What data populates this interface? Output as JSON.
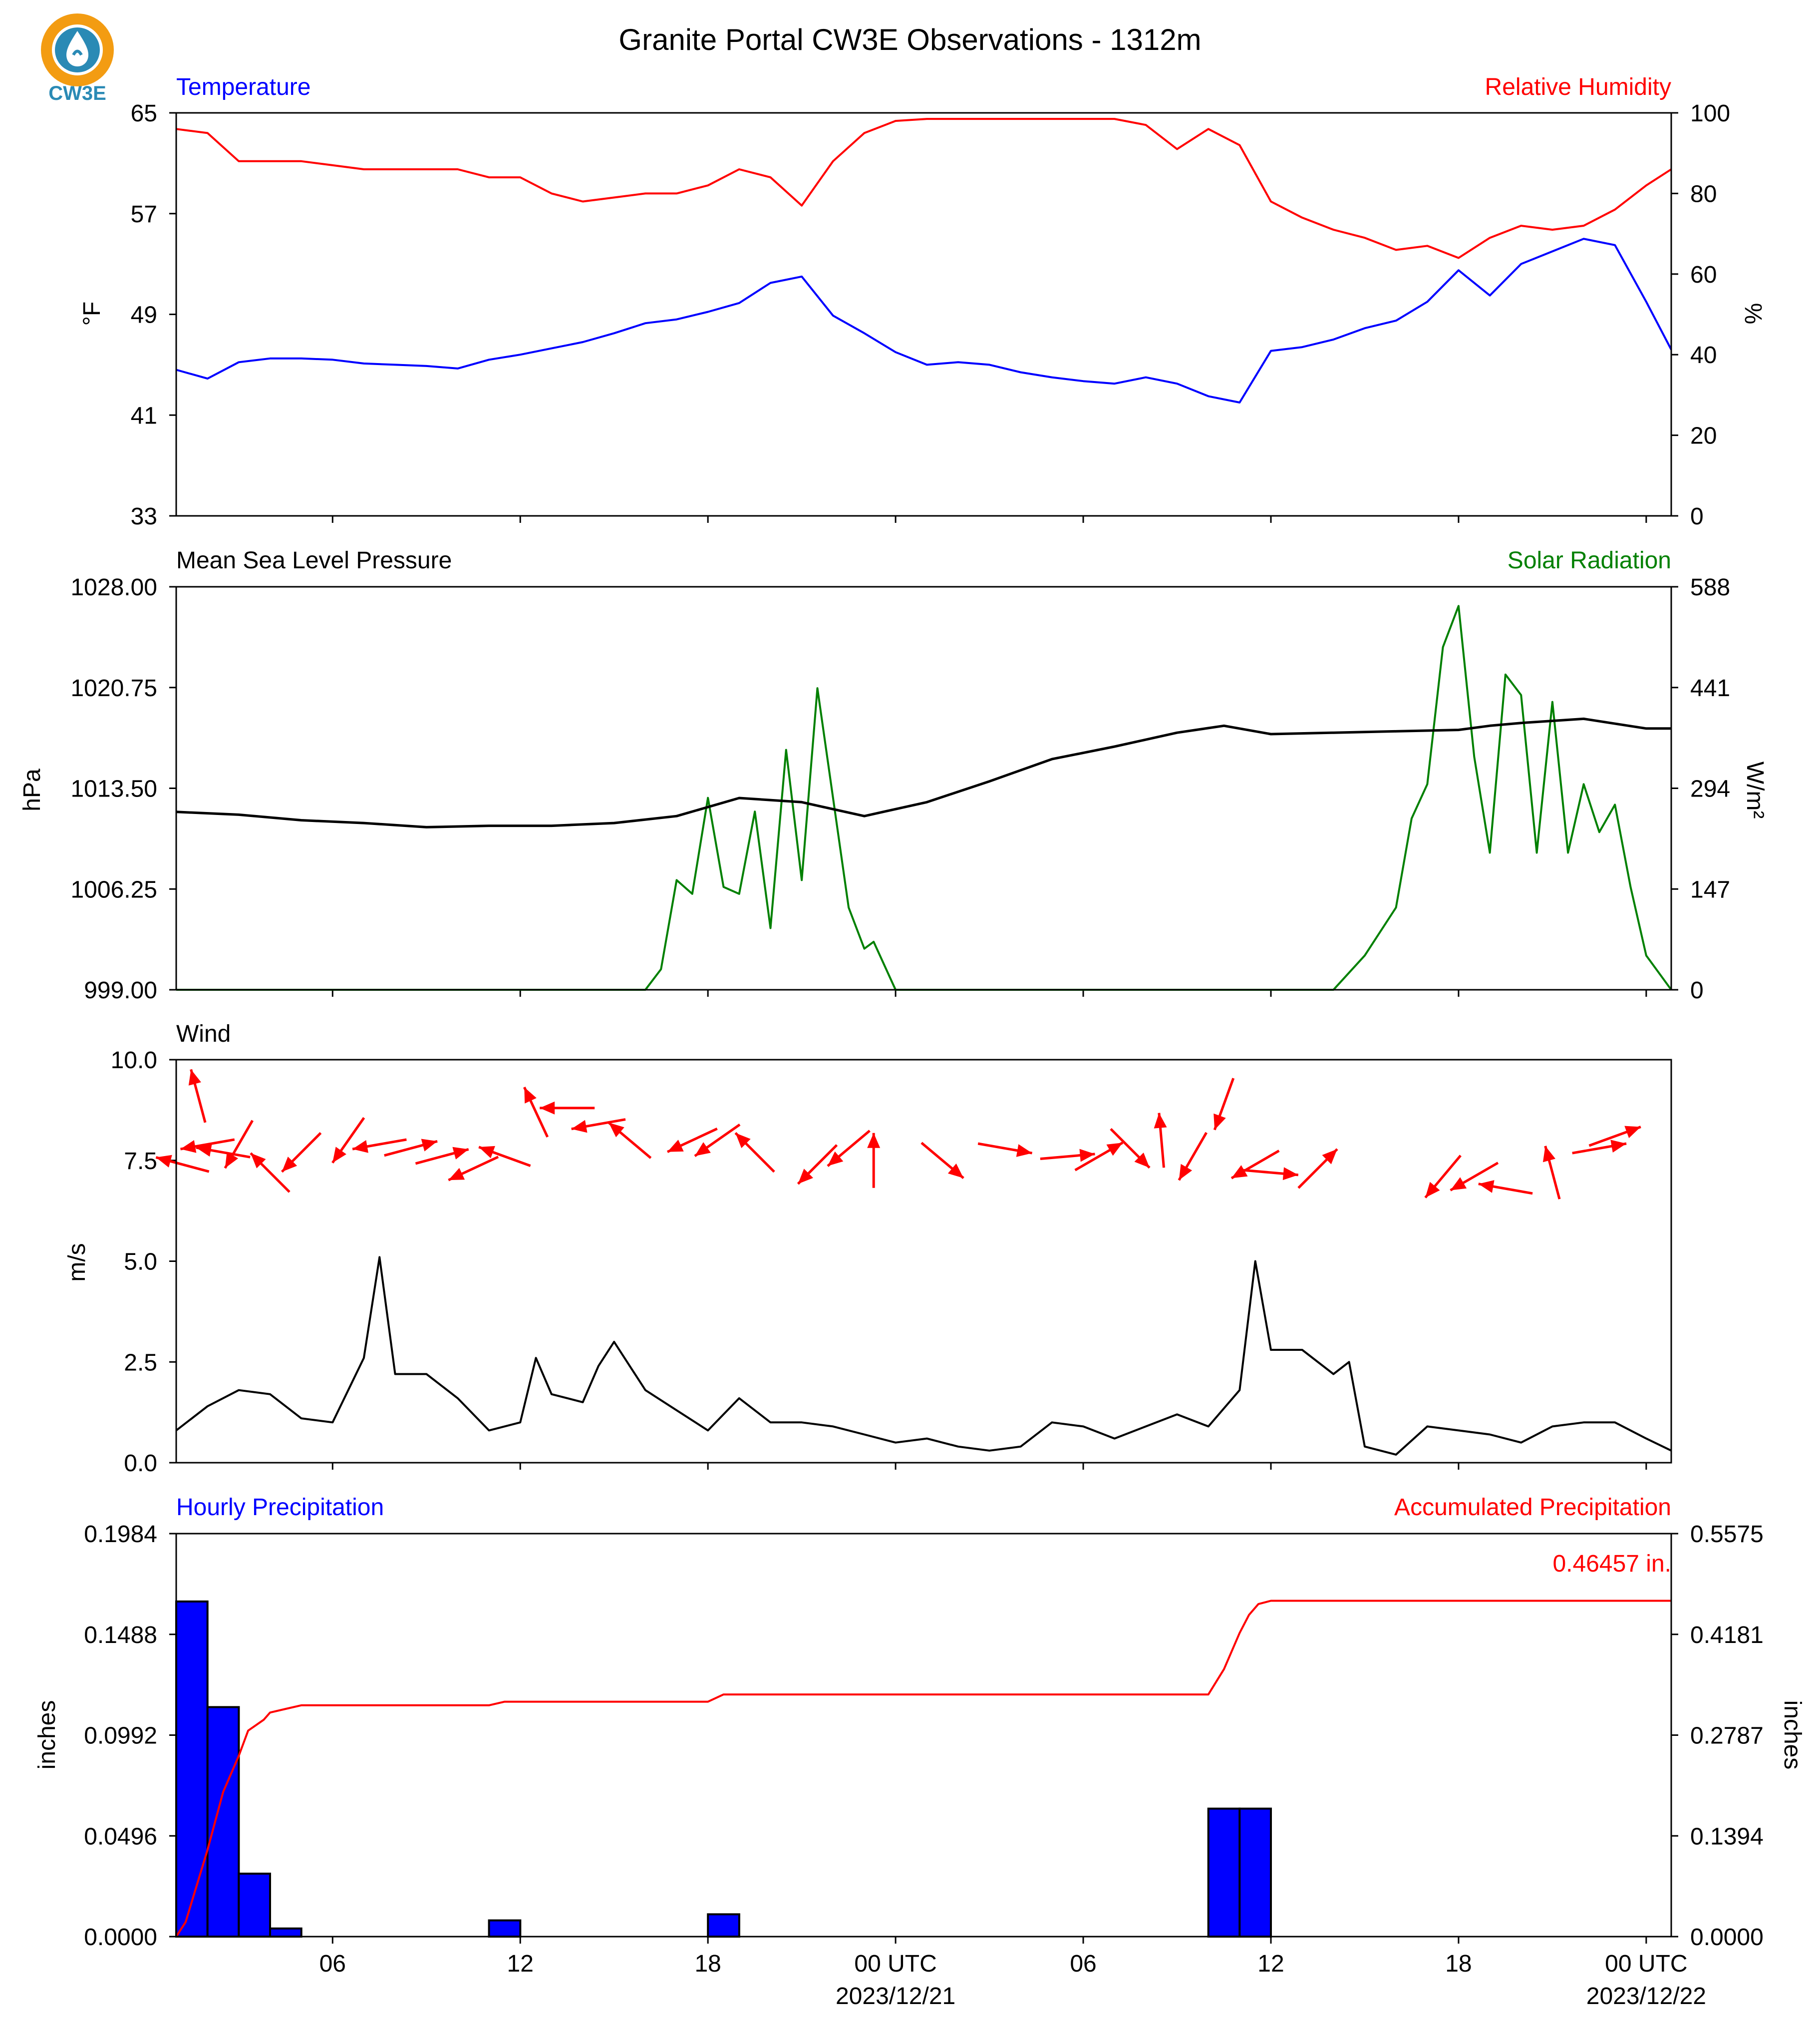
{
  "title": "Granite Portal CW3E Observations - 1312m",
  "logo": {
    "text": "CW3E",
    "icon": "cw3e-logo-icon",
    "colors": {
      "ring": "#f39c12",
      "drop": "#2a8ab5"
    }
  },
  "colors": {
    "blue": "#0000ff",
    "red": "#ff0000",
    "green": "#008000",
    "black": "#000000"
  },
  "x_axis": {
    "ticks": [
      "06",
      "12",
      "18",
      "00 UTC",
      "06",
      "12",
      "18",
      "00 UTC"
    ],
    "dates": [
      "2023/12/21",
      "2023/12/22"
    ]
  },
  "panels": {
    "temperature": {
      "left_label": "Temperature",
      "right_label": "Relative Humidity",
      "left_unit": "°F",
      "right_unit": "%",
      "left_ticks": [
        "65",
        "57",
        "49",
        "41",
        "33"
      ],
      "right_ticks": [
        "100",
        "80",
        "60",
        "40",
        "20",
        "0"
      ]
    },
    "pressure": {
      "left_label": "Mean Sea Level Pressure",
      "right_label": "Solar Radiation",
      "left_unit": "hPa",
      "right_unit": "W/m²",
      "left_ticks": [
        "1028.00",
        "1020.75",
        "1013.50",
        "1006.25",
        "999.00"
      ],
      "right_ticks": [
        "588",
        "441",
        "294",
        "147",
        "0"
      ]
    },
    "wind": {
      "left_label": "Wind",
      "left_unit": "m/s",
      "left_ticks": [
        "10.0",
        "7.5",
        "5.0",
        "2.5",
        "0.0"
      ]
    },
    "precip": {
      "left_label": "Hourly Precipitation",
      "right_label": "Accumulated Precipitation",
      "left_unit": "inches",
      "right_unit": "inches",
      "left_ticks": [
        "0.1984",
        "0.1488",
        "0.0992",
        "0.0496",
        "0.0000"
      ],
      "right_ticks": [
        "0.5575",
        "0.4181",
        "0.2787",
        "0.1394",
        "0.0000"
      ],
      "total_label": "0.46457 in."
    }
  },
  "chart_data": [
    {
      "type": "line",
      "title": "Temperature / Relative Humidity",
      "x_unit": "hours since 2023-12-20 01 UTC",
      "xlim": [
        0,
        47.8
      ],
      "series": [
        {
          "name": "Temperature",
          "axis": "left",
          "unit": "°F",
          "ylim": [
            33,
            65
          ],
          "x": [
            0,
            1,
            2,
            3,
            4,
            5,
            6,
            7,
            8,
            9,
            10,
            11,
            12,
            13,
            14,
            15,
            16,
            17,
            18,
            19,
            20,
            21,
            22,
            23,
            24,
            25,
            26,
            27,
            28,
            29,
            30,
            31,
            32,
            33,
            34,
            35,
            36,
            37,
            38,
            39,
            40,
            41,
            42,
            43,
            44,
            45,
            46,
            47,
            47.8
          ],
          "y": [
            44.6,
            43.9,
            45.2,
            45.5,
            45.5,
            45.4,
            45.1,
            45.0,
            44.9,
            44.7,
            45.4,
            45.8,
            46.3,
            46.8,
            47.5,
            48.3,
            48.6,
            49.2,
            49.9,
            51.5,
            52.0,
            48.9,
            47.5,
            46.0,
            45.0,
            45.2,
            45.0,
            44.4,
            44.0,
            43.7,
            43.5,
            44.0,
            43.5,
            42.5,
            42.0,
            46.1,
            46.4,
            47.0,
            47.9,
            48.5,
            50.0,
            52.5,
            50.5,
            53.0,
            54.0,
            55.0,
            54.5,
            50.0,
            46.2
          ]
        },
        {
          "name": "Relative Humidity",
          "axis": "right",
          "unit": "%",
          "ylim": [
            0,
            100
          ],
          "x": [
            0,
            1,
            2,
            3,
            4,
            5,
            6,
            7,
            8,
            9,
            10,
            11,
            12,
            13,
            14,
            15,
            16,
            17,
            18,
            19,
            20,
            21,
            22,
            23,
            24,
            25,
            26,
            27,
            28,
            29,
            30,
            31,
            32,
            33,
            34,
            35,
            36,
            37,
            38,
            39,
            40,
            41,
            42,
            43,
            44,
            45,
            46,
            47,
            47.8
          ],
          "y": [
            96,
            95,
            88,
            88,
            88,
            87,
            86,
            86,
            86,
            86,
            84,
            84,
            80,
            78,
            79,
            80,
            80,
            82,
            86,
            84,
            77,
            88,
            95,
            98,
            98.5,
            98.5,
            98.5,
            98.5,
            98.5,
            98.5,
            98.5,
            97,
            91,
            96,
            92,
            78,
            74,
            71,
            69,
            66,
            67,
            64,
            69,
            72,
            71,
            72,
            76,
            82,
            86
          ]
        }
      ]
    },
    {
      "type": "line",
      "title": "Mean Sea Level Pressure / Solar Radiation",
      "x_unit": "hours since 2023-12-20 01 UTC",
      "xlim": [
        0,
        47.8
      ],
      "series": [
        {
          "name": "Mean Sea Level Pressure",
          "axis": "left",
          "unit": "hPa",
          "ylim": [
            999,
            1028
          ],
          "x": [
            0,
            2,
            4,
            6,
            8,
            10,
            12,
            14,
            16,
            18,
            20,
            22,
            24,
            26,
            28,
            30,
            32,
            33.5,
            35,
            37,
            39,
            41,
            42,
            43,
            45,
            47,
            47.8
          ],
          "y": [
            1011.8,
            1011.6,
            1011.2,
            1011.0,
            1010.7,
            1010.8,
            1010.8,
            1011.0,
            1011.5,
            1012.8,
            1012.5,
            1011.5,
            1012.5,
            1014.0,
            1015.6,
            1016.5,
            1017.5,
            1018.0,
            1017.4,
            1017.5,
            1017.6,
            1017.7,
            1018.0,
            1018.2,
            1018.5,
            1017.8,
            1017.8
          ]
        },
        {
          "name": "Solar Radiation",
          "axis": "right",
          "unit": "W/m²",
          "ylim": [
            0,
            588
          ],
          "x": [
            0,
            14,
            15,
            15.5,
            16,
            16.5,
            17,
            17.5,
            18,
            18.5,
            19,
            19.5,
            20,
            20.5,
            21,
            21.5,
            22,
            22.3,
            23,
            36,
            37,
            38,
            39,
            39.5,
            40,
            40.5,
            41,
            41.5,
            42,
            42.5,
            43,
            43.5,
            44,
            44.5,
            45,
            45.5,
            46,
            46.5,
            47,
            47.8
          ],
          "y": [
            0,
            0,
            0,
            30,
            160,
            140,
            280,
            150,
            140,
            260,
            90,
            350,
            160,
            440,
            280,
            120,
            60,
            70,
            0,
            0,
            0,
            50,
            120,
            250,
            300,
            500,
            560,
            340,
            200,
            460,
            430,
            200,
            420,
            200,
            300,
            230,
            270,
            150,
            50,
            0
          ]
        }
      ]
    },
    {
      "type": "line",
      "title": "Wind",
      "x_unit": "hours since 2023-12-20 01 UTC",
      "xlim": [
        0,
        47.8
      ],
      "series": [
        {
          "name": "Wind Speed",
          "unit": "m/s",
          "ylim": [
            0,
            10
          ],
          "x": [
            0,
            1,
            2,
            3,
            4,
            5,
            6,
            6.5,
            7,
            8,
            9,
            10,
            11,
            11.5,
            12,
            13,
            13.5,
            14,
            15,
            16,
            17,
            18,
            19,
            20,
            21,
            22,
            23,
            24,
            25,
            26,
            27,
            28,
            29,
            30,
            31,
            32,
            33,
            34,
            34.5,
            35,
            36,
            37,
            37.5,
            38,
            39,
            40,
            41,
            42,
            43,
            44,
            45,
            46,
            47,
            47.8
          ],
          "y": [
            0.8,
            1.4,
            1.8,
            1.7,
            1.1,
            1.0,
            2.6,
            5.1,
            2.2,
            2.2,
            1.6,
            0.8,
            1.0,
            2.6,
            1.7,
            1.5,
            2.4,
            3.0,
            1.8,
            1.3,
            0.8,
            1.6,
            1.0,
            1.0,
            0.9,
            0.7,
            0.5,
            0.6,
            0.4,
            0.3,
            0.4,
            1.0,
            0.9,
            0.6,
            0.9,
            1.2,
            0.9,
            1.8,
            5.0,
            2.8,
            2.8,
            2.2,
            2.5,
            0.4,
            0.2,
            0.9,
            0.8,
            0.7,
            0.5,
            0.9,
            1.0,
            1.0,
            0.6,
            0.3
          ]
        },
        {
          "name": "Wind Direction",
          "unit": "degrees (arrow points toward)",
          "x": [
            0.2,
            0.7,
            1.0,
            1.5,
            2.0,
            3.0,
            4.0,
            5.5,
            6.5,
            7.5,
            8.5,
            9.5,
            10.5,
            11.5,
            12.5,
            13.5,
            14.5,
            16.5,
            17.3,
            18.5,
            20.5,
            21.5,
            22.3,
            24.5,
            26.5,
            28.5,
            29.5,
            30.5,
            31.5,
            32.5,
            33.5,
            34.5,
            35.0,
            36.5,
            40.5,
            41.5,
            42.5,
            44.0,
            45.5,
            46.0
          ],
          "y": [
            7.4,
            9.1,
            7.9,
            7.7,
            7.9,
            7.2,
            7.7,
            8.0,
            7.9,
            7.8,
            7.6,
            7.3,
            7.6,
            8.7,
            8.8,
            8.4,
            8.0,
            8.0,
            8.0,
            7.7,
            7.4,
            7.8,
            7.5,
            7.5,
            7.8,
            7.6,
            7.6,
            7.8,
            8.0,
            7.6,
            8.9,
            7.4,
            7.2,
            7.3,
            7.1,
            7.1,
            6.8,
            7.2,
            7.8,
            8.1
          ],
          "angle": [
            -75,
            -15,
            -100,
            -80,
            -150,
            -45,
            -135,
            -145,
            -100,
            75,
            75,
            -115,
            -70,
            -25,
            -90,
            -100,
            -50,
            -115,
            -125,
            -45,
            -135,
            -130,
            0,
            130,
            100,
            85,
            60,
            135,
            -5,
            -150,
            -160,
            -120,
            95,
            45,
            -140,
            -120,
            -80,
            -15,
            80,
            70
          ]
        }
      ]
    },
    {
      "type": "bar",
      "title": "Hourly Precipitation / Accumulated Precipitation",
      "x_unit": "hours since 2023-12-20 01 UTC",
      "xlim": [
        0,
        47.8
      ],
      "series": [
        {
          "name": "Hourly Precipitation",
          "axis": "left",
          "unit": "inches",
          "ylim": [
            0,
            0.1984
          ],
          "x": [
            0,
            1,
            2,
            3,
            10,
            17,
            33,
            34
          ],
          "values": [
            0.165,
            0.113,
            0.031,
            0.004,
            0.008,
            0.011,
            0.063,
            0.063
          ]
        },
        {
          "name": "Accumulated Precipitation",
          "axis": "right",
          "unit": "inches",
          "ylim": [
            0,
            0.5575
          ],
          "type": "line",
          "x": [
            0,
            0.3,
            1,
            1.5,
            2,
            2.3,
            2.8,
            3,
            3.5,
            4,
            10,
            10.5,
            17,
            17.5,
            33,
            33.5,
            34,
            34.3,
            34.6,
            35,
            47.8
          ],
          "y": [
            0.0,
            0.02,
            0.12,
            0.2,
            0.25,
            0.285,
            0.3,
            0.31,
            0.315,
            0.32,
            0.32,
            0.325,
            0.325,
            0.335,
            0.335,
            0.37,
            0.42,
            0.445,
            0.46,
            0.46457,
            0.46457
          ]
        }
      ]
    }
  ]
}
